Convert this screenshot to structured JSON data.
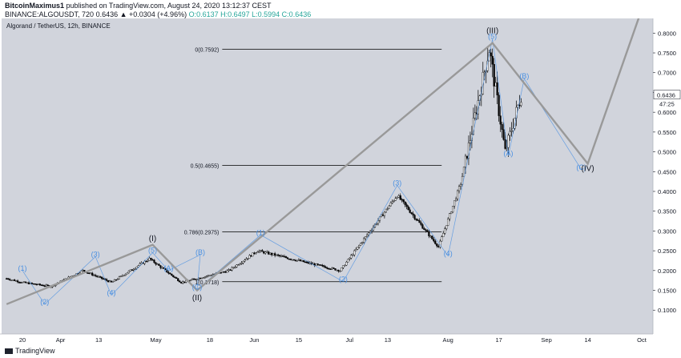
{
  "header": {
    "author": "BitcoinMaximus1",
    "published_text": "published on TradingView.com, August 24, 2020 13:12:37 CEST",
    "symbol_line": "BINANCE:ALGOUSDT, 720",
    "last": "0.6436",
    "change": "▲ +0.0304 (+4.96%)",
    "ohlc": "O:0.6137 H:0.6497 L:0.5994 C:0.6436"
  },
  "chart_title": "Algorand / TetherUS, 12h, BINANCE",
  "footer": {
    "brand": "TradingView"
  },
  "colors": {
    "background": "#d1d4dc",
    "wave_lines": "#999999",
    "elliott_blue": "#4a90e2",
    "candles": "#000000",
    "price_badge": "#ffffff"
  },
  "chart_data": {
    "type": "candlestick",
    "title": "Algorand / TetherUS, 12h, BINANCE",
    "x_ticks": [
      "20",
      "Apr",
      "13",
      "May",
      "18",
      "Jun",
      "15",
      "Jul",
      "13",
      "Aug",
      "17",
      "Sep",
      "14",
      "Oct"
    ],
    "y_ticks": [
      "0.8000",
      "0.7500",
      "0.7000",
      "0.6500",
      "0.6000",
      "0.5500",
      "0.5000",
      "0.4500",
      "0.4000",
      "0.3500",
      "0.3000",
      "0.2500",
      "0.2000",
      "0.1500",
      "0.1000"
    ],
    "y_range": [
      0.06,
      0.83
    ],
    "last_price": "0.6436",
    "countdown": "47:25",
    "fib_levels": [
      {
        "label": "0(0.7592)",
        "value": 0.7592
      },
      {
        "label": "0.5(0.4655)",
        "value": 0.4655
      },
      {
        "label": "0.786(0.2975)",
        "value": 0.2975
      },
      {
        "label": "1(0.1718)",
        "value": 0.1718
      }
    ],
    "price_path_approx": [
      {
        "date": "Mar 15",
        "price": 0.18
      },
      {
        "date": "Mar 20",
        "price": 0.17
      },
      {
        "date": "Mar 29",
        "price": 0.16
      },
      {
        "date": "Apr 8",
        "price": 0.2
      },
      {
        "date": "Apr 17",
        "price": 0.17
      },
      {
        "date": "Apr 29",
        "price": 0.23
      },
      {
        "date": "May 9",
        "price": 0.17
      },
      {
        "date": "May 24",
        "price": 0.2
      },
      {
        "date": "Jun 2",
        "price": 0.25
      },
      {
        "date": "Jun 28",
        "price": 0.2
      },
      {
        "date": "Jul 16",
        "price": 0.39
      },
      {
        "date": "Jul 29",
        "price": 0.26
      },
      {
        "date": "Aug 5",
        "price": 0.42
      },
      {
        "date": "Aug 14",
        "price": 0.76
      },
      {
        "date": "Aug 19",
        "price": 0.5
      },
      {
        "date": "Aug 24",
        "price": 0.6436
      }
    ],
    "wave_annotations": [
      {
        "label": "(1)",
        "date": "Mar 20",
        "price": 0.2,
        "color": "blue"
      },
      {
        "label": "(2)",
        "date": "Mar 27",
        "price": 0.115,
        "color": "blue"
      },
      {
        "label": "(3)",
        "date": "Apr 12",
        "price": 0.235,
        "color": "blue"
      },
      {
        "label": "(4)",
        "date": "Apr 17",
        "price": 0.138,
        "color": "blue"
      },
      {
        "label": "(5)",
        "date": "Apr 30",
        "price": 0.245,
        "color": "blue"
      },
      {
        "label": "(I)",
        "date": "Apr 30",
        "price": 0.275,
        "color": "black"
      },
      {
        "label": "(A)",
        "date": "May 5",
        "price": 0.2,
        "color": "blue"
      },
      {
        "label": "(B)",
        "date": "May 15",
        "price": 0.24,
        "color": "blue"
      },
      {
        "label": "(C)",
        "date": "May 14",
        "price": 0.152,
        "color": "blue"
      },
      {
        "label": "(II)",
        "date": "May 14",
        "price": 0.125,
        "color": "black"
      },
      {
        "label": "(1)",
        "date": "Jun 3",
        "price": 0.29,
        "color": "blue"
      },
      {
        "label": "(2)",
        "date": "Jun 29",
        "price": 0.172,
        "color": "blue"
      },
      {
        "label": "(3)",
        "date": "Jul 16",
        "price": 0.415,
        "color": "blue"
      },
      {
        "label": "(4)",
        "date": "Aug 1",
        "price": 0.237,
        "color": "blue"
      },
      {
        "label": "(5)",
        "date": "Aug 15",
        "price": 0.785,
        "color": "blue"
      },
      {
        "label": "(III)",
        "date": "Aug 15",
        "price": 0.8,
        "color": "black"
      },
      {
        "label": "(A)",
        "date": "Aug 20",
        "price": 0.49,
        "color": "blue"
      },
      {
        "label": "(B)",
        "date": "Aug 25",
        "price": 0.685,
        "color": "blue"
      },
      {
        "label": "(C)",
        "date": "Sep 12",
        "price": 0.455,
        "color": "blue"
      },
      {
        "label": "(IV)",
        "date": "Sep 14",
        "price": 0.452,
        "color": "black"
      }
    ],
    "projection_path": [
      {
        "date": "Mar 15",
        "price": 0.115
      },
      {
        "date": "Apr 30",
        "price": 0.265
      },
      {
        "date": "May 14",
        "price": 0.15
      },
      {
        "date": "Aug 15",
        "price": 0.775
      },
      {
        "date": "Sep 14",
        "price": 0.47
      },
      {
        "date": "Oct 1",
        "price": 0.86
      }
    ]
  }
}
